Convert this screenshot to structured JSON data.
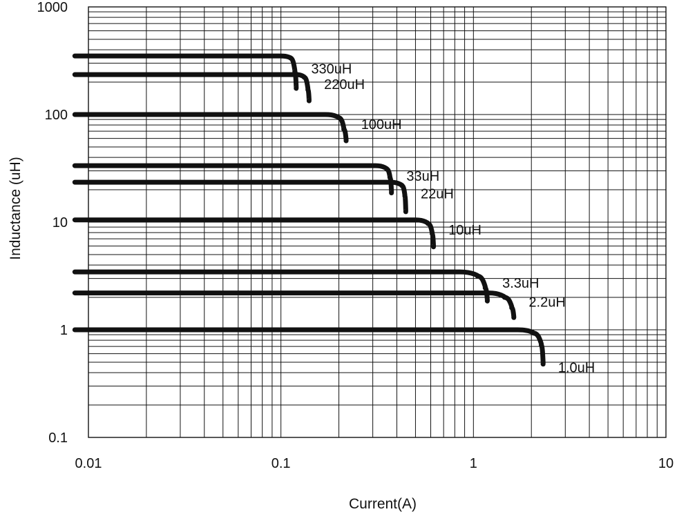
{
  "chart_data": {
    "type": "line",
    "title": "",
    "xlabel": "Current(A)",
    "ylabel": "Inductance (uH)",
    "x_scale": "log",
    "y_scale": "log",
    "xlim": [
      0.01,
      10
    ],
    "ylim": [
      0.1,
      1000
    ],
    "grid": true,
    "legend": "none",
    "x_ticks": [
      "0.01",
      "0.1",
      "1",
      "10"
    ],
    "y_ticks": [
      "0.1",
      "1",
      "10",
      "100",
      "1000"
    ],
    "series": [
      {
        "name": "330uH",
        "values": [
          [
            0.0085,
            350
          ],
          [
            0.1,
            350
          ],
          [
            0.112,
            335
          ],
          [
            0.118,
            250
          ],
          [
            0.12,
            175
          ]
        ]
      },
      {
        "name": "220uH",
        "values": [
          [
            0.0085,
            235
          ],
          [
            0.12,
            235
          ],
          [
            0.132,
            222
          ],
          [
            0.138,
            170
          ],
          [
            0.14,
            134
          ]
        ]
      },
      {
        "name": "100uH",
        "values": [
          [
            0.0085,
            100
          ],
          [
            0.17,
            100
          ],
          [
            0.2,
            93
          ],
          [
            0.212,
            73
          ],
          [
            0.218,
            57
          ]
        ]
      },
      {
        "name": "33uH",
        "values": [
          [
            0.0085,
            33.5
          ],
          [
            0.31,
            33.5
          ],
          [
            0.355,
            31
          ],
          [
            0.368,
            26
          ],
          [
            0.375,
            18.7
          ]
        ]
      },
      {
        "name": "22uH",
        "values": [
          [
            0.0085,
            23.5
          ],
          [
            0.37,
            23.5
          ],
          [
            0.425,
            21.8
          ],
          [
            0.44,
            17.5
          ],
          [
            0.445,
            12.5
          ]
        ]
      },
      {
        "name": "10uH",
        "values": [
          [
            0.0085,
            10.5
          ],
          [
            0.5,
            10.5
          ],
          [
            0.58,
            9.7
          ],
          [
            0.61,
            7.8
          ],
          [
            0.62,
            5.9
          ]
        ]
      },
      {
        "name": "3.3uH",
        "values": [
          [
            0.0085,
            3.45
          ],
          [
            0.85,
            3.45
          ],
          [
            1.05,
            3.15
          ],
          [
            1.15,
            2.45
          ],
          [
            1.18,
            1.85
          ]
        ]
      },
      {
        "name": "2.2uH",
        "values": [
          [
            0.0085,
            2.2
          ],
          [
            1.2,
            2.2
          ],
          [
            1.45,
            2.0
          ],
          [
            1.58,
            1.6
          ],
          [
            1.62,
            1.3
          ]
        ]
      },
      {
        "name": "1.0uH",
        "values": [
          [
            0.0085,
            1.0
          ],
          [
            1.7,
            1.0
          ],
          [
            2.05,
            0.93
          ],
          [
            2.25,
            0.72
          ],
          [
            2.3,
            0.48
          ]
        ]
      }
    ]
  }
}
